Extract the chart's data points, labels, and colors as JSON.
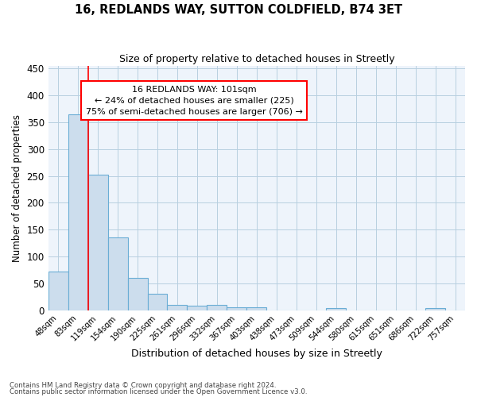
{
  "title": "16, REDLANDS WAY, SUTTON COLDFIELD, B74 3ET",
  "subtitle": "Size of property relative to detached houses in Streetly",
  "xlabel": "Distribution of detached houses by size in Streetly",
  "ylabel": "Number of detached properties",
  "categories": [
    "48sqm",
    "83sqm",
    "119sqm",
    "154sqm",
    "190sqm",
    "225sqm",
    "261sqm",
    "296sqm",
    "332sqm",
    "367sqm",
    "403sqm",
    "438sqm",
    "473sqm",
    "509sqm",
    "544sqm",
    "580sqm",
    "615sqm",
    "651sqm",
    "686sqm",
    "722sqm",
    "757sqm"
  ],
  "values": [
    72,
    365,
    252,
    135,
    60,
    30,
    10,
    8,
    10,
    5,
    5,
    0,
    0,
    0,
    4,
    0,
    0,
    0,
    0,
    4,
    0
  ],
  "bar_color": "#ccdded",
  "bar_edge_color": "#6aadd5",
  "grid_color": "#b8cfe0",
  "bg_color": "#eef4fb",
  "red_line_x": 1.5,
  "annotation_text": "16 REDLANDS WAY: 101sqm\n← 24% of detached houses are smaller (225)\n75% of semi-detached houses are larger (706) →",
  "annotation_box_color": "white",
  "annotation_box_edge": "red",
  "footnote1": "Contains HM Land Registry data © Crown copyright and database right 2024.",
  "footnote2": "Contains public sector information licensed under the Open Government Licence v3.0.",
  "ylim": [
    0,
    455
  ],
  "yticks": [
    0,
    50,
    100,
    150,
    200,
    250,
    300,
    350,
    400,
    450
  ]
}
